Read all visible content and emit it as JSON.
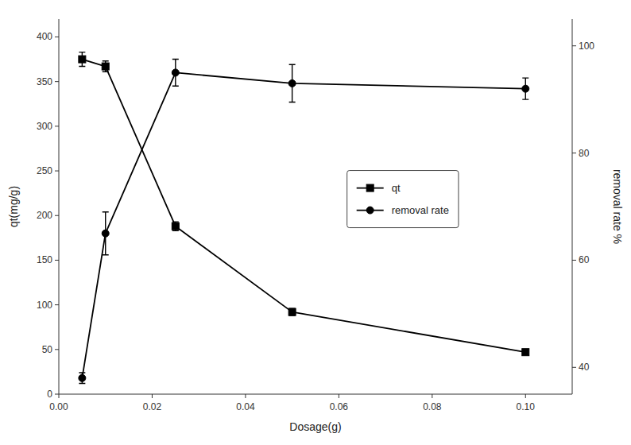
{
  "chart_data": {
    "type": "line",
    "x_label": "Dosage(g)",
    "y_label": "qt(mg/g)",
    "y2_label": "removal rate %",
    "xlim": [
      0.0,
      0.11
    ],
    "xticks": [
      {
        "value": 0.0,
        "label": "0.00"
      },
      {
        "value": 0.02,
        "label": "0.02"
      },
      {
        "value": 0.04,
        "label": "0.04"
      },
      {
        "value": 0.06,
        "label": "0.06"
      },
      {
        "value": 0.08,
        "label": "0.08"
      },
      {
        "value": 0.1,
        "label": "0.10"
      }
    ],
    "ylim": [
      0,
      420
    ],
    "yticks": [
      0,
      50,
      100,
      150,
      200,
      250,
      300,
      350,
      400
    ],
    "y2lim": [
      35,
      105
    ],
    "y2ticks": [
      40,
      60,
      80,
      100
    ],
    "grid": false,
    "legend": "right",
    "series": [
      {
        "name": "qt",
        "color": "#000000",
        "marker": "square",
        "line_style": "solid",
        "x": [
          0.005,
          0.01,
          0.025,
          0.05,
          0.1
        ],
        "values": [
          375,
          367,
          188,
          92,
          47
        ],
        "errors": [
          8,
          6,
          5,
          4,
          3
        ]
      },
      {
        "name": "removal rate",
        "axis": "y2",
        "color": "#000000",
        "marker": "circle",
        "line_style": "solid",
        "x": [
          0.005,
          0.01,
          0.025,
          0.05,
          0.1
        ],
        "values": [
          38,
          65,
          95,
          93,
          92
        ],
        "errors": [
          1.0,
          4.0,
          2.5,
          3.5,
          2.0
        ]
      }
    ]
  }
}
